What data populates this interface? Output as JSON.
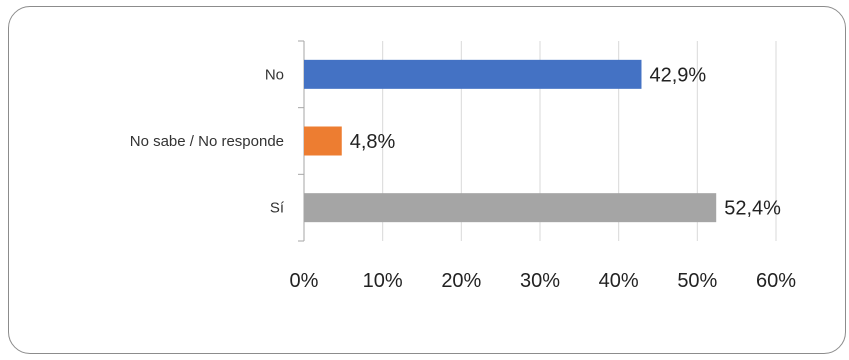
{
  "chart_data": {
    "type": "bar",
    "orientation": "horizontal",
    "categories": [
      "No",
      "No sabe / No responde",
      "Sí"
    ],
    "values": [
      42.9,
      4.8,
      52.4
    ],
    "data_labels": [
      "42,9%",
      "4,8%",
      "52,4%"
    ],
    "colors": [
      "#4472c4",
      "#ed7d31",
      "#a5a5a5"
    ],
    "xlim": [
      0,
      60
    ],
    "x_ticks": [
      0,
      10,
      20,
      30,
      40,
      50,
      60
    ],
    "x_tick_labels": [
      "0%",
      "10%",
      "20%",
      "30%",
      "40%",
      "50%",
      "60%"
    ],
    "grid": true,
    "legend": "none"
  }
}
